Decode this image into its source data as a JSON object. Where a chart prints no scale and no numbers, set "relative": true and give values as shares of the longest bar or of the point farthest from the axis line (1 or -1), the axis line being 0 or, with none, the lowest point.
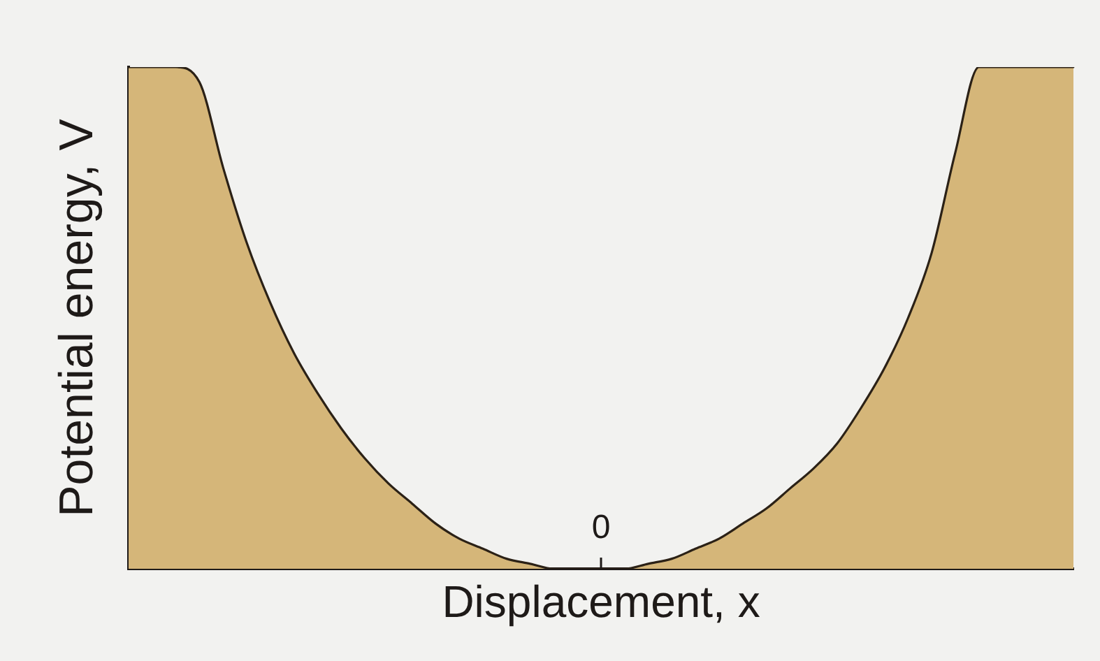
{
  "chart_data": {
    "type": "area",
    "xlabel": "Displacement, x",
    "ylabel": "Potential energy, V",
    "categories": [
      null,
      null,
      null,
      null,
      null,
      null,
      null,
      null,
      null,
      null,
      null,
      null,
      null,
      null,
      null,
      null,
      null,
      null,
      null,
      null,
      null,
      null,
      null,
      null,
      null,
      null,
      null,
      null,
      null,
      null,
      null,
      null,
      null,
      null,
      null,
      null,
      null,
      null,
      null,
      null,
      null
    ],
    "values": [
      1,
      1,
      1,
      0.97,
      0.8,
      0.65,
      0.53,
      0.43,
      0.35,
      0.28,
      0.22,
      0.17,
      0.13,
      0.09,
      0.06,
      0.04,
      0.02,
      0.01,
      0,
      0,
      0,
      0,
      0.01,
      0.02,
      0.04,
      0.06,
      0.09,
      0.12,
      0.16,
      0.2,
      0.25,
      0.32,
      0.4,
      0.5,
      0.63,
      0.83,
      1,
      1,
      1,
      1,
      1
    ],
    "color": "#d5b679",
    "relative": true,
    "annotations": [
      "0"
    ]
  }
}
